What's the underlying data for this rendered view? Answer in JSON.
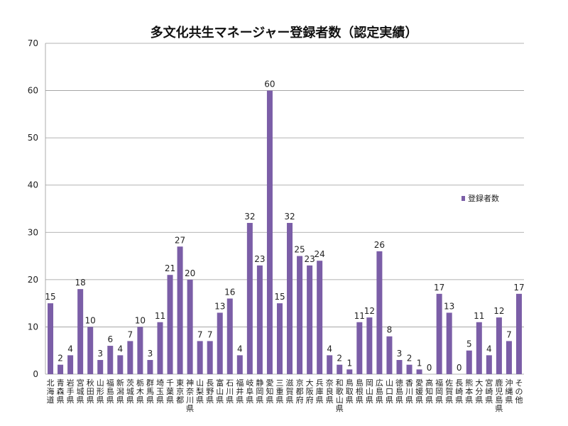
{
  "chart_data": {
    "type": "bar",
    "title": "多文化共生マネージャー登録者数（認定実績）",
    "xlabel": "",
    "ylabel": "",
    "ylim": [
      0,
      70
    ],
    "yticks": [
      0,
      10,
      20,
      30,
      40,
      50,
      60,
      70
    ],
    "grid": true,
    "legend_position": "right",
    "bar_color": "#7b5ea7",
    "series": [
      {
        "name": "登録者数",
        "values": [
          15,
          2,
          4,
          18,
          10,
          3,
          6,
          4,
          7,
          10,
          3,
          11,
          21,
          27,
          20,
          7,
          7,
          13,
          16,
          4,
          32,
          23,
          60,
          15,
          32,
          25,
          23,
          24,
          4,
          2,
          1,
          11,
          12,
          26,
          8,
          3,
          2,
          1,
          0,
          17,
          13,
          0,
          5,
          11,
          4,
          12,
          7,
          17
        ]
      }
    ],
    "categories": [
      "北海道",
      "青森県",
      "岩手県",
      "宮城県",
      "秋田県",
      "山形県",
      "福島県",
      "新潟県",
      "茨城県",
      "栃木県",
      "群馬県",
      "埼玉県",
      "千葉県",
      "東京都",
      "神奈川県",
      "山梨県",
      "長野県",
      "富山県",
      "石川県",
      "福井県",
      "岐阜県",
      "静岡県",
      "愛知県",
      "三重県",
      "滋賀県",
      "京都府",
      "大阪府",
      "兵庫県",
      "奈良県",
      "和歌山県",
      "鳥取県",
      "島根県",
      "岡山県",
      "広島県",
      "山口県",
      "徳島県",
      "香川県",
      "愛媛県",
      "高知県",
      "福岡県",
      "佐賀県",
      "長崎県",
      "熊本県",
      "大分県",
      "宮崎県",
      "鹿児島県",
      "沖縄県",
      "その他"
    ]
  }
}
